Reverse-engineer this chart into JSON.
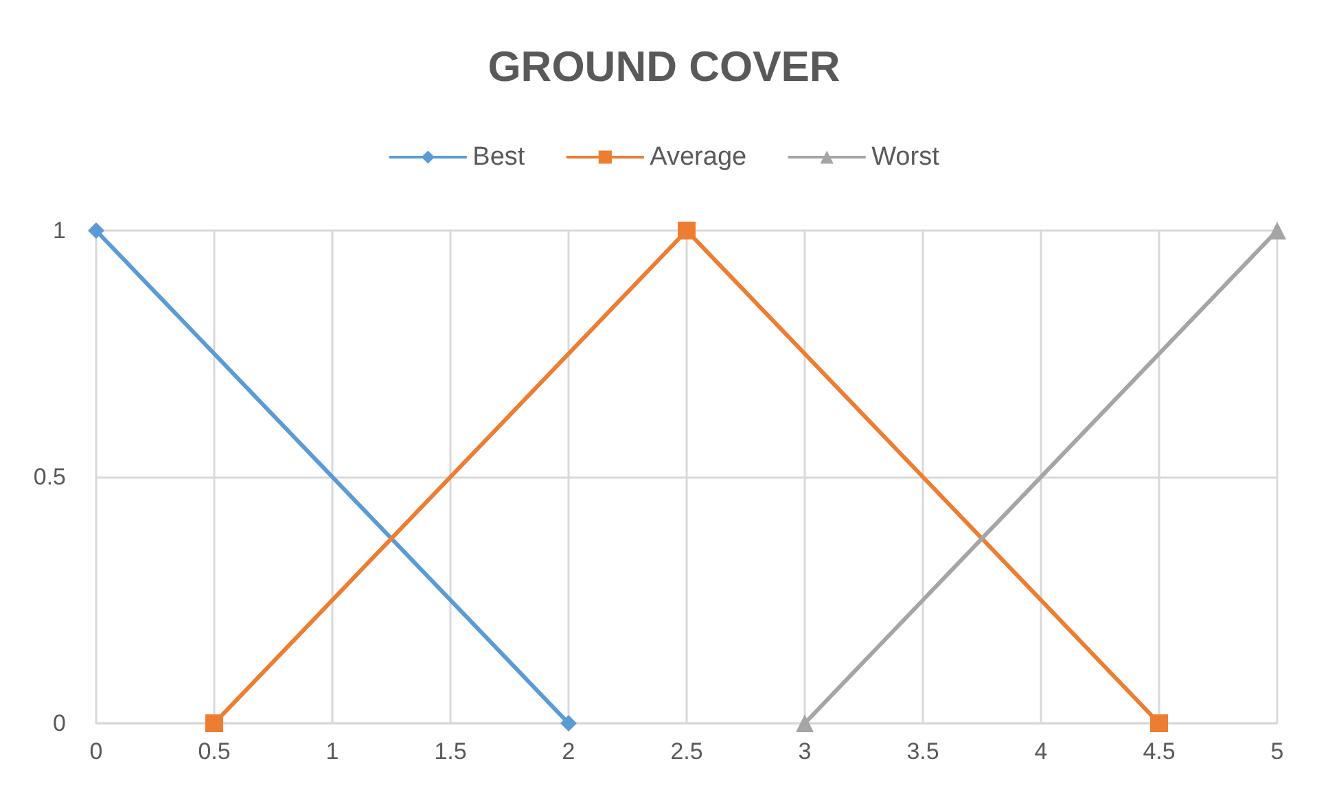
{
  "chart_data": {
    "type": "line",
    "title": "GROUND COVER",
    "legend": "top",
    "grid": true,
    "line_style": "solid",
    "xlim": [
      0,
      5
    ],
    "xticks": [
      0,
      0.5,
      1,
      1.5,
      2,
      2.5,
      3,
      3.5,
      4,
      4.5,
      5
    ],
    "ylim": [
      0,
      1
    ],
    "yticks": [
      0,
      0.5,
      1
    ],
    "series": [
      {
        "name": "Best",
        "color": "#5b9bd5",
        "marker": "diamond",
        "x": [
          0,
          2
        ],
        "values": [
          1,
          0
        ]
      },
      {
        "name": "Average",
        "color": "#ed7d31",
        "marker": "square",
        "x": [
          0.5,
          2.5,
          4.5
        ],
        "values": [
          0,
          1,
          0
        ]
      },
      {
        "name": "Worst",
        "color": "#a5a5a5",
        "marker": "triangle",
        "x": [
          3,
          5
        ],
        "values": [
          0,
          1
        ]
      }
    ]
  }
}
